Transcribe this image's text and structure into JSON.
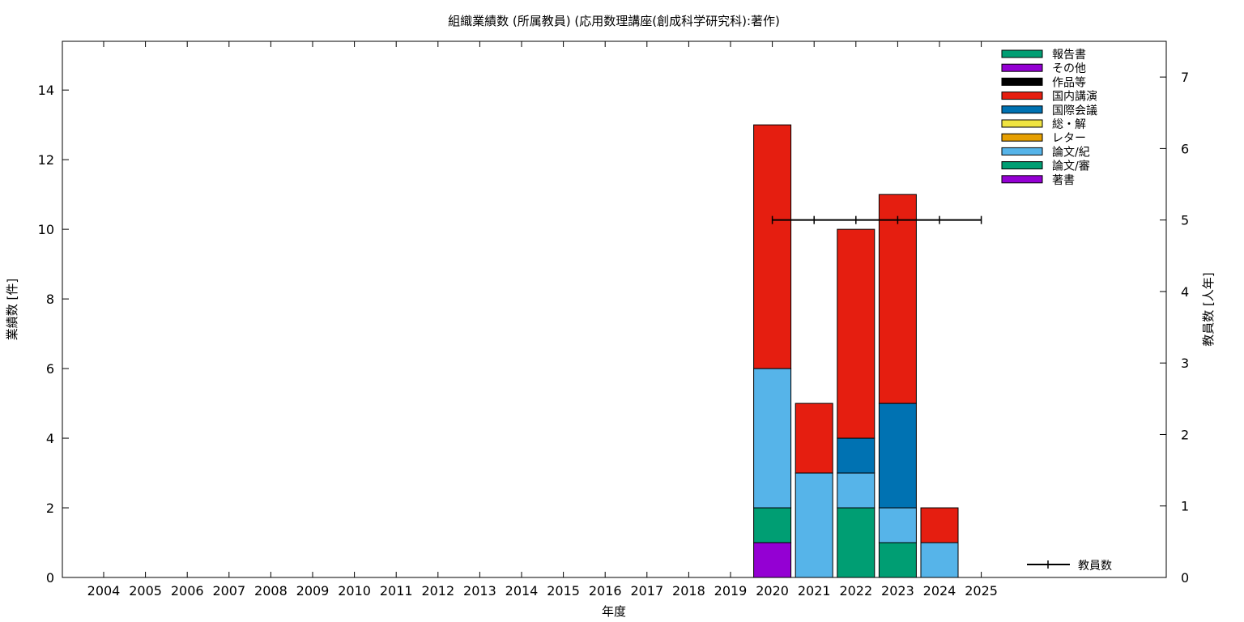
{
  "chart_data": {
    "type": "bar",
    "stacked": true,
    "title": "組織業績数 (所属教員) (応用数理講座(創成科学研究科):著作)",
    "xlabel": "年度",
    "ylabel": "業績数 [件]",
    "y2label": "教員数 [人年]",
    "ylim": [
      0,
      15.4
    ],
    "y2lim": [
      0,
      7.5
    ],
    "yticks": [
      0,
      2,
      4,
      6,
      8,
      10,
      12,
      14
    ],
    "y2ticks": [
      0,
      1,
      2,
      3,
      4,
      5,
      6,
      7
    ],
    "grid": false,
    "legend_position": "top-right",
    "categories": [
      "2004",
      "2005",
      "2006",
      "2007",
      "2008",
      "2009",
      "2010",
      "2011",
      "2012",
      "2013",
      "2014",
      "2015",
      "2016",
      "2017",
      "2018",
      "2019",
      "2020",
      "2021",
      "2022",
      "2023",
      "2024",
      "2025"
    ],
    "series": [
      {
        "name": "著書",
        "color": "#9400d3",
        "values": [
          0,
          0,
          0,
          0,
          0,
          0,
          0,
          0,
          0,
          0,
          0,
          0,
          0,
          0,
          0,
          0,
          1,
          0,
          0,
          0,
          0,
          0
        ]
      },
      {
        "name": "論文/審",
        "color": "#009e73",
        "values": [
          0,
          0,
          0,
          0,
          0,
          0,
          0,
          0,
          0,
          0,
          0,
          0,
          0,
          0,
          0,
          0,
          1,
          0,
          2,
          1,
          0,
          0
        ]
      },
      {
        "name": "論文/紀",
        "color": "#56b4e9",
        "values": [
          0,
          0,
          0,
          0,
          0,
          0,
          0,
          0,
          0,
          0,
          0,
          0,
          0,
          0,
          0,
          0,
          4,
          3,
          1,
          1,
          1,
          0
        ]
      },
      {
        "name": "レター",
        "color": "#e69f00",
        "values": [
          0,
          0,
          0,
          0,
          0,
          0,
          0,
          0,
          0,
          0,
          0,
          0,
          0,
          0,
          0,
          0,
          0,
          0,
          0,
          0,
          0,
          0
        ]
      },
      {
        "name": "総・解",
        "color": "#f0e442",
        "values": [
          0,
          0,
          0,
          0,
          0,
          0,
          0,
          0,
          0,
          0,
          0,
          0,
          0,
          0,
          0,
          0,
          0,
          0,
          0,
          0,
          0,
          0
        ]
      },
      {
        "name": "国際会議",
        "color": "#0072b2",
        "values": [
          0,
          0,
          0,
          0,
          0,
          0,
          0,
          0,
          0,
          0,
          0,
          0,
          0,
          0,
          0,
          0,
          0,
          0,
          1,
          3,
          0,
          0
        ]
      },
      {
        "name": "国内講演",
        "color": "#e51e10",
        "values": [
          0,
          0,
          0,
          0,
          0,
          0,
          0,
          0,
          0,
          0,
          0,
          0,
          0,
          0,
          0,
          0,
          7,
          2,
          6,
          6,
          1,
          0
        ]
      },
      {
        "name": "作品等",
        "color": "#000000",
        "values": [
          0,
          0,
          0,
          0,
          0,
          0,
          0,
          0,
          0,
          0,
          0,
          0,
          0,
          0,
          0,
          0,
          0,
          0,
          0,
          0,
          0,
          0
        ]
      },
      {
        "name": "その他",
        "color": "#9400d3",
        "values": [
          0,
          0,
          0,
          0,
          0,
          0,
          0,
          0,
          0,
          0,
          0,
          0,
          0,
          0,
          0,
          0,
          0,
          0,
          0,
          0,
          0,
          0
        ]
      },
      {
        "name": "報告書",
        "color": "#009e73",
        "values": [
          0,
          0,
          0,
          0,
          0,
          0,
          0,
          0,
          0,
          0,
          0,
          0,
          0,
          0,
          0,
          0,
          0,
          0,
          0,
          0,
          0,
          0
        ]
      }
    ],
    "legend_order": [
      "報告書",
      "その他",
      "作品等",
      "国内講演",
      "国際会議",
      "総・解",
      "レター",
      "論文/紀",
      "論文/審",
      "著書"
    ],
    "line_series": {
      "name": "教員数",
      "axis": "y2",
      "color": "#000000",
      "categories": [
        "2020",
        "2021",
        "2022",
        "2023",
        "2024",
        "2025"
      ],
      "values": [
        5,
        5,
        5,
        5,
        5,
        5
      ]
    }
  }
}
